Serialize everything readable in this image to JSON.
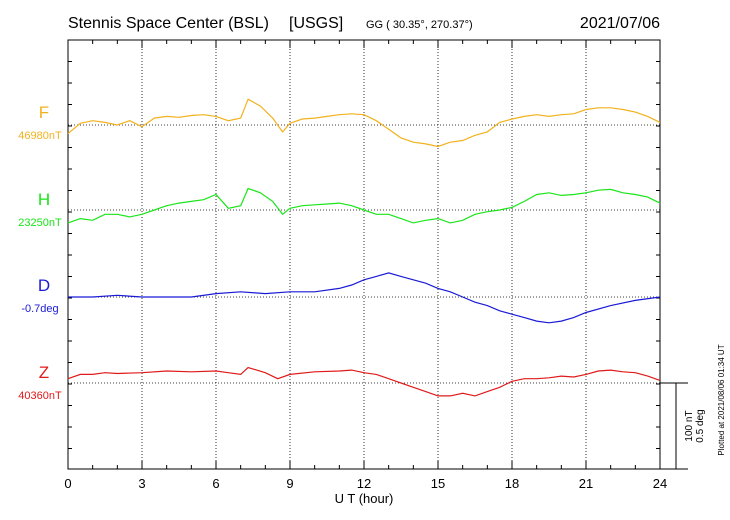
{
  "header": {
    "station": "Stennis Space Center (BSL)",
    "network": "[USGS]",
    "coords": "GG ( 30.35°, 270.37°)",
    "date": "2021/07/06"
  },
  "footer": {
    "plotted": "Plotted at 2021/08/06 01:34 UT"
  },
  "scale": {
    "nt": "100 nT",
    "deg": "0.5 deg"
  },
  "chart_data": {
    "type": "line",
    "xlabel": "U T (hour)",
    "xlim": [
      0,
      24
    ],
    "xticks": [
      0,
      3,
      6,
      9,
      12,
      15,
      18,
      21,
      24
    ],
    "grid": true,
    "series": [
      {
        "name": "F",
        "baseline": "46980nT",
        "color": "#f2b21e",
        "units_per_div": 100,
        "x": [
          0,
          0.5,
          1,
          1.5,
          2,
          2.5,
          3,
          3.5,
          4,
          4.5,
          5,
          5.5,
          6,
          6.5,
          7,
          7.3,
          7.8,
          8.3,
          8.7,
          9,
          9.5,
          10,
          10.5,
          11,
          11.5,
          12,
          12.5,
          13,
          13.5,
          14,
          14.5,
          15,
          15.5,
          16,
          16.5,
          17,
          17.5,
          18,
          18.5,
          19,
          19.5,
          20,
          20.5,
          21,
          21.5,
          22,
          22.5,
          23,
          23.5,
          24
        ],
        "values": [
          -10,
          2,
          5,
          3,
          0,
          5,
          -2,
          8,
          10,
          9,
          11,
          12,
          10,
          5,
          8,
          30,
          22,
          8,
          -8,
          2,
          7,
          8,
          10,
          12,
          13,
          12,
          5,
          -5,
          -15,
          -20,
          -22,
          -25,
          -20,
          -18,
          -12,
          -8,
          3,
          7,
          10,
          12,
          10,
          12,
          13,
          18,
          20,
          20,
          18,
          15,
          10,
          3
        ]
      },
      {
        "name": "H",
        "baseline": "23250nT",
        "color": "#19e519",
        "units_per_div": 100,
        "x": [
          0,
          0.5,
          1,
          1.5,
          2,
          2.5,
          3,
          3.5,
          4,
          4.5,
          5,
          5.5,
          6,
          6.5,
          7,
          7.3,
          7.8,
          8.3,
          8.7,
          9,
          9.5,
          10,
          10.5,
          11,
          11.5,
          12,
          12.5,
          13,
          13.5,
          14,
          14.5,
          15,
          15.5,
          16,
          16.5,
          17,
          17.5,
          18,
          18.5,
          19,
          19.5,
          20,
          20.5,
          21,
          21.5,
          22,
          22.5,
          23,
          23.5,
          24
        ],
        "values": [
          -15,
          -10,
          -12,
          -5,
          -5,
          -8,
          -5,
          0,
          5,
          8,
          10,
          12,
          18,
          2,
          5,
          25,
          20,
          10,
          -5,
          2,
          5,
          6,
          7,
          8,
          5,
          0,
          -5,
          -5,
          -10,
          -15,
          -12,
          -10,
          -15,
          -12,
          -5,
          -2,
          0,
          3,
          10,
          18,
          20,
          17,
          18,
          20,
          23,
          24,
          20,
          18,
          15,
          8
        ]
      },
      {
        "name": "D",
        "baseline": "-0.7deg",
        "color": "#1a1ad6",
        "units_per_div": 0.5,
        "x": [
          0,
          1,
          2,
          3,
          4,
          5,
          6,
          7,
          8,
          9,
          10,
          11,
          11.5,
          12,
          12.5,
          13,
          13.5,
          14,
          14.5,
          15,
          15.5,
          16,
          16.5,
          17,
          17.5,
          18,
          18.5,
          19,
          19.5,
          20,
          20.5,
          21,
          22,
          23,
          24
        ],
        "values": [
          0,
          0,
          0.01,
          0,
          0,
          0,
          0.02,
          0.03,
          0.02,
          0.03,
          0.03,
          0.05,
          0.07,
          0.1,
          0.12,
          0.14,
          0.12,
          0.1,
          0.08,
          0.05,
          0.03,
          0,
          -0.03,
          -0.05,
          -0.08,
          -0.1,
          -0.12,
          -0.14,
          -0.15,
          -0.14,
          -0.12,
          -0.09,
          -0.05,
          -0.02,
          0
        ]
      },
      {
        "name": "Z",
        "baseline": "40360nT",
        "color": "#e01a1a",
        "units_per_div": 100,
        "x": [
          0,
          0.5,
          1,
          1.5,
          2,
          3,
          4,
          5,
          6,
          6.5,
          7,
          7.3,
          8,
          8.5,
          9,
          10,
          11,
          11.5,
          12,
          12.5,
          13,
          13.5,
          14,
          14.5,
          15,
          15.5,
          16,
          16.5,
          17,
          17.5,
          18,
          18.5,
          19,
          19.5,
          20,
          20.5,
          21,
          21.5,
          22,
          22.5,
          23,
          23.5,
          24
        ],
        "values": [
          5,
          10,
          10,
          12,
          11,
          12,
          14,
          13,
          14,
          12,
          10,
          18,
          12,
          5,
          10,
          13,
          14,
          15,
          12,
          10,
          5,
          0,
          -5,
          -10,
          -15,
          -15,
          -12,
          -15,
          -10,
          -5,
          2,
          5,
          5,
          6,
          8,
          7,
          10,
          14,
          15,
          13,
          12,
          8,
          3
        ]
      }
    ]
  }
}
